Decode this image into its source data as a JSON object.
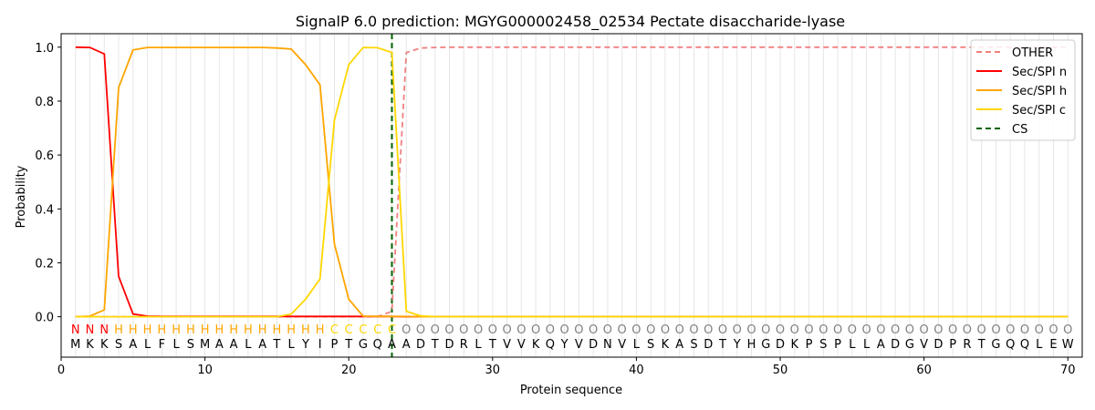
{
  "chart_data": {
    "type": "line",
    "title": "SignalP 6.0 prediction: MGYG000002458_02534 Pectate disaccharide-lyase",
    "xlabel": "Protein sequence",
    "ylabel": "Probability",
    "xlim": [
      0,
      71
    ],
    "ylim": [
      -0.15,
      1.05
    ],
    "xticks": [
      0,
      10,
      20,
      30,
      40,
      50,
      60,
      70
    ],
    "yticks": [
      0.0,
      0.2,
      0.4,
      0.6,
      0.8,
      1.0
    ],
    "xtick_labels": [
      "0",
      "10",
      "20",
      "30",
      "40",
      "50",
      "60",
      "70"
    ],
    "ytick_labels": [
      "0.0",
      "0.2",
      "0.4",
      "0.6",
      "0.8",
      "1.0"
    ],
    "grid": "vertical lines at each residue",
    "legend_position": "top-right",
    "sequence": [
      "M",
      "K",
      "K",
      "S",
      "A",
      "L",
      "F",
      "L",
      "S",
      "M",
      "A",
      "A",
      "L",
      "A",
      "T",
      "L",
      "Y",
      "I",
      "P",
      "T",
      "G",
      "Q",
      "A",
      "A",
      "D",
      "T",
      "D",
      "R",
      "L",
      "T",
      "V",
      "V",
      "K",
      "Q",
      "Y",
      "V",
      "D",
      "N",
      "V",
      "L",
      "S",
      "K",
      "A",
      "S",
      "D",
      "T",
      "Y",
      "H",
      "G",
      "D",
      "K",
      "P",
      "S",
      "P",
      "L",
      "L",
      "A",
      "D",
      "G",
      "V",
      "D",
      "P",
      "R",
      "T",
      "G",
      "Q",
      "Q",
      "L",
      "E",
      "W"
    ],
    "labels": [
      "N",
      "N",
      "N",
      "H",
      "H",
      "H",
      "H",
      "H",
      "H",
      "H",
      "H",
      "H",
      "H",
      "H",
      "H",
      "H",
      "H",
      "H",
      "C",
      "C",
      "C",
      "C",
      "C",
      "O",
      "O",
      "O",
      "O",
      "O",
      "O",
      "O",
      "O",
      "O",
      "O",
      "O",
      "O",
      "O",
      "O",
      "O",
      "O",
      "O",
      "O",
      "O",
      "O",
      "O",
      "O",
      "O",
      "O",
      "O",
      "O",
      "O",
      "O",
      "O",
      "O",
      "O",
      "O",
      "O",
      "O",
      "O",
      "O",
      "O",
      "O",
      "O",
      "O",
      "O",
      "O",
      "O",
      "O",
      "O",
      "O",
      "O"
    ],
    "label_colors": {
      "N": "#ff0000",
      "H": "#ffa500",
      "C": "#ffd700",
      "O": "#808080"
    },
    "cleavage_site": 23,
    "series": [
      {
        "name": "OTHER",
        "color": "#f08080",
        "dash": "dashed",
        "values": [
          0,
          0,
          0,
          0,
          0,
          0,
          0,
          0,
          0,
          0,
          0,
          0,
          0,
          0,
          0,
          0,
          0,
          0,
          0,
          0,
          0,
          0,
          0.02,
          0.98,
          0.997,
          0.999,
          1,
          1,
          1,
          1,
          1,
          1,
          1,
          1,
          1,
          1,
          1,
          1,
          1,
          1,
          1,
          1,
          1,
          1,
          1,
          1,
          1,
          1,
          1,
          1,
          1,
          1,
          1,
          1,
          1,
          1,
          1,
          1,
          1,
          1,
          1,
          1,
          1,
          1,
          1,
          1,
          1,
          1,
          1,
          1
        ]
      },
      {
        "name": "Sec/SPI n",
        "color": "#ff0000",
        "dash": "solid",
        "values": [
          1.0,
          0.999,
          0.975,
          0.15,
          0.01,
          0.002,
          0.001,
          0.001,
          0.001,
          0.001,
          0.001,
          0.001,
          0.001,
          0.001,
          0.001,
          0.001,
          0.001,
          0.001,
          0.001,
          0.001,
          0.001,
          0.001,
          0.001,
          0,
          0,
          0,
          0,
          0,
          0,
          0,
          0,
          0,
          0,
          0,
          0,
          0,
          0,
          0,
          0,
          0,
          0,
          0,
          0,
          0,
          0,
          0,
          0,
          0,
          0,
          0,
          0,
          0,
          0,
          0,
          0,
          0,
          0,
          0,
          0,
          0,
          0,
          0,
          0,
          0,
          0,
          0,
          0,
          0,
          0,
          0
        ]
      },
      {
        "name": "Sec/SPI h",
        "color": "#ffa500",
        "dash": "solid",
        "values": [
          0,
          0.002,
          0.025,
          0.85,
          0.99,
          0.999,
          0.999,
          0.999,
          0.999,
          0.999,
          0.999,
          0.999,
          0.999,
          0.999,
          0.997,
          0.993,
          0.935,
          0.86,
          0.27,
          0.065,
          0.002,
          0.001,
          0.001,
          0.001,
          0,
          0,
          0,
          0,
          0,
          0,
          0,
          0,
          0,
          0,
          0,
          0,
          0,
          0,
          0,
          0,
          0,
          0,
          0,
          0,
          0,
          0,
          0,
          0,
          0,
          0,
          0,
          0,
          0,
          0,
          0,
          0,
          0,
          0,
          0,
          0,
          0,
          0,
          0,
          0,
          0,
          0,
          0,
          0,
          0,
          0
        ]
      },
      {
        "name": "Sec/SPI c",
        "color": "#ffd700",
        "dash": "solid",
        "values": [
          0,
          0,
          0,
          0,
          0,
          0,
          0,
          0,
          0,
          0,
          0,
          0,
          0,
          0,
          0,
          0.01,
          0.065,
          0.14,
          0.73,
          0.935,
          0.999,
          0.998,
          0.98,
          0.02,
          0.003,
          0,
          0,
          0,
          0,
          0,
          0,
          0,
          0,
          0,
          0,
          0,
          0,
          0,
          0,
          0,
          0,
          0,
          0,
          0,
          0,
          0,
          0,
          0,
          0,
          0,
          0,
          0,
          0,
          0,
          0,
          0,
          0,
          0,
          0,
          0,
          0,
          0,
          0,
          0,
          0,
          0,
          0,
          0,
          0,
          0
        ]
      }
    ],
    "cs_series": {
      "name": "CS",
      "color": "#006400",
      "dash": "dashed"
    }
  }
}
